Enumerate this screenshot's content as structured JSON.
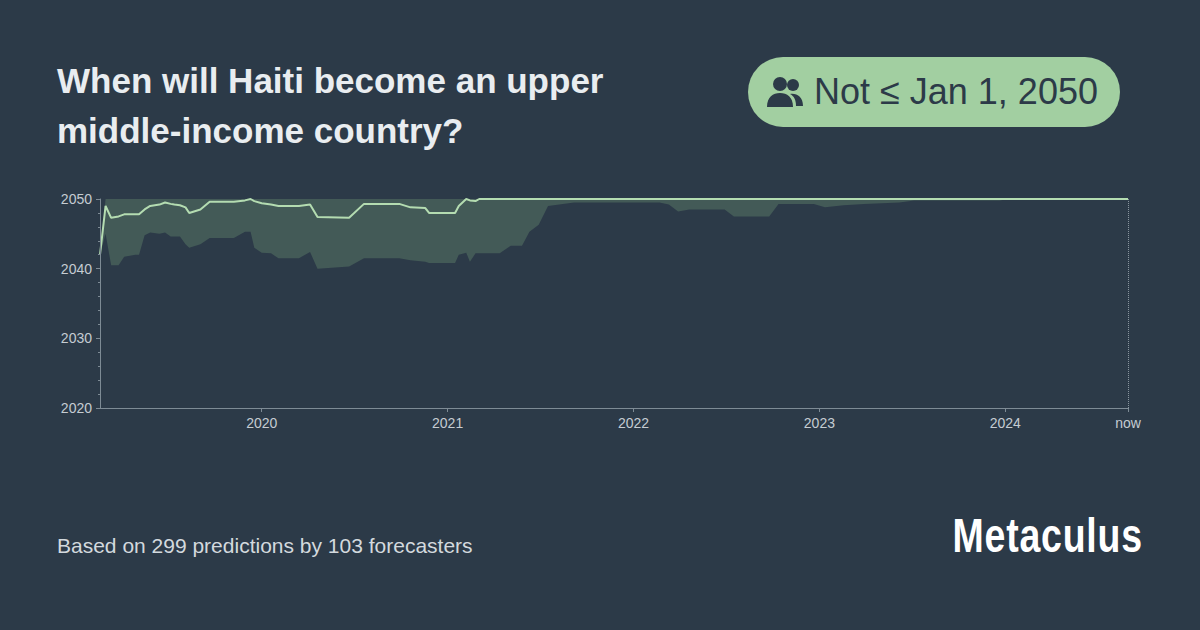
{
  "chart_data": {
    "type": "line",
    "title": "When will Haiti become an upper middle-income country?",
    "badge": "Not ≤ Jan 1, 2050",
    "footer": "Based on 299 predictions by 103 forecasters",
    "logo": "Metaculus",
    "x": [
      2019.13,
      2019.16,
      2019.19,
      2019.23,
      2019.26,
      2019.32,
      2019.34,
      2019.37,
      2019.4,
      2019.45,
      2019.48,
      2019.51,
      2019.53,
      2019.56,
      2019.59,
      2019.61,
      2019.67,
      2019.72,
      2019.85,
      2019.91,
      2019.94,
      2019.96,
      2020.0,
      2020.05,
      2020.09,
      2020.2,
      2020.26,
      2020.3,
      2020.47,
      2020.55,
      2020.74,
      2020.8,
      2020.88,
      2020.9,
      2021.04,
      2021.06,
      2021.1,
      2021.12,
      2021.15,
      2021.17,
      2021.28,
      2021.34,
      2021.4,
      2021.44,
      2021.49,
      2021.54,
      2021.6,
      2021.68,
      2022.14,
      2022.19,
      2022.24,
      2022.3,
      2022.49,
      2022.54,
      2022.73,
      2022.78,
      2022.97,
      2023.03,
      2023.13,
      2023.24,
      2023.43,
      2023.51,
      2023.97,
      2024.02,
      2024.66
    ],
    "series": [
      {
        "type": "area",
        "color": "#435a57",
        "values": [
          2042,
          2050,
          2050,
          2050,
          2050,
          2050,
          2050,
          2050,
          2050,
          2050,
          2050,
          2050,
          2050,
          2050,
          2050,
          2050,
          2050,
          2050,
          2050,
          2050,
          2050,
          2050,
          2050,
          2050,
          2050,
          2050,
          2050,
          2050,
          2050,
          2050,
          2050,
          2050,
          2050,
          2050,
          2050,
          2050,
          2050,
          2050,
          2050,
          2050,
          2050,
          2050,
          2050,
          2050,
          2050,
          2050,
          2050,
          2050,
          2050,
          2050,
          2050,
          2050,
          2050,
          2050,
          2050,
          2050,
          2050,
          2050,
          2050,
          2050,
          2050,
          2050,
          2050,
          2050,
          2050
        ]
      },
      {
        "type": "area",
        "color": "#2c3a48",
        "values": [
          2042,
          2045,
          2040.5,
          2040.5,
          2041.7,
          2042,
          2042,
          2044.8,
          2045.2,
          2045,
          2045.2,
          2044.6,
          2044.6,
          2044.6,
          2043.5,
          2043,
          2043.5,
          2044.4,
          2044.4,
          2045.3,
          2045.3,
          2043,
          2042.3,
          2042.2,
          2041.5,
          2041.5,
          2042.4,
          2040,
          2040.3,
          2041.5,
          2041.5,
          2041.2,
          2041,
          2040.8,
          2040.8,
          2042,
          2042.3,
          2041,
          2042.2,
          2042.2,
          2042.2,
          2043.3,
          2043.3,
          2045.3,
          2046.3,
          2049,
          2049.2,
          2049.5,
          2049.5,
          2049.2,
          2048.2,
          2048.5,
          2048.5,
          2047.5,
          2047.5,
          2049.3,
          2049.3,
          2048.8,
          2049.1,
          2049.3,
          2049.5,
          2049.8,
          2049.8,
          2050,
          2050
        ]
      },
      {
        "type": "line",
        "color": "#b4dcb1",
        "values": [
          2042,
          2049,
          2047.3,
          2047.5,
          2047.8,
          2047.8,
          2047.8,
          2048.5,
          2049,
          2049.2,
          2049.5,
          2049.3,
          2049.2,
          2049.1,
          2048.8,
          2048,
          2048.5,
          2049.6,
          2049.6,
          2049.8,
          2050,
          2049.7,
          2049.4,
          2049.2,
          2049,
          2049,
          2049.2,
          2047.4,
          2047.3,
          2049.3,
          2049.3,
          2048.8,
          2048.7,
          2048,
          2048,
          2049,
          2050,
          2049.8,
          2049.7,
          2050,
          2050,
          2050,
          2050,
          2050,
          2050,
          2050,
          2050,
          2050,
          2050,
          2050,
          2050,
          2050,
          2050,
          2050,
          2050,
          2050,
          2050,
          2050,
          2050,
          2050,
          2050,
          2050,
          2050,
          2050,
          2050
        ]
      }
    ],
    "xlim": [
      2019.13,
      2024.66
    ],
    "xticks": [
      2020,
      2021,
      2022,
      2023,
      2024,
      {
        "value": 2024.66,
        "label": "now"
      }
    ],
    "ylim": [
      2020,
      2050
    ],
    "yticks": [
      2020,
      2030,
      2040,
      2050
    ],
    "grid": false
  }
}
